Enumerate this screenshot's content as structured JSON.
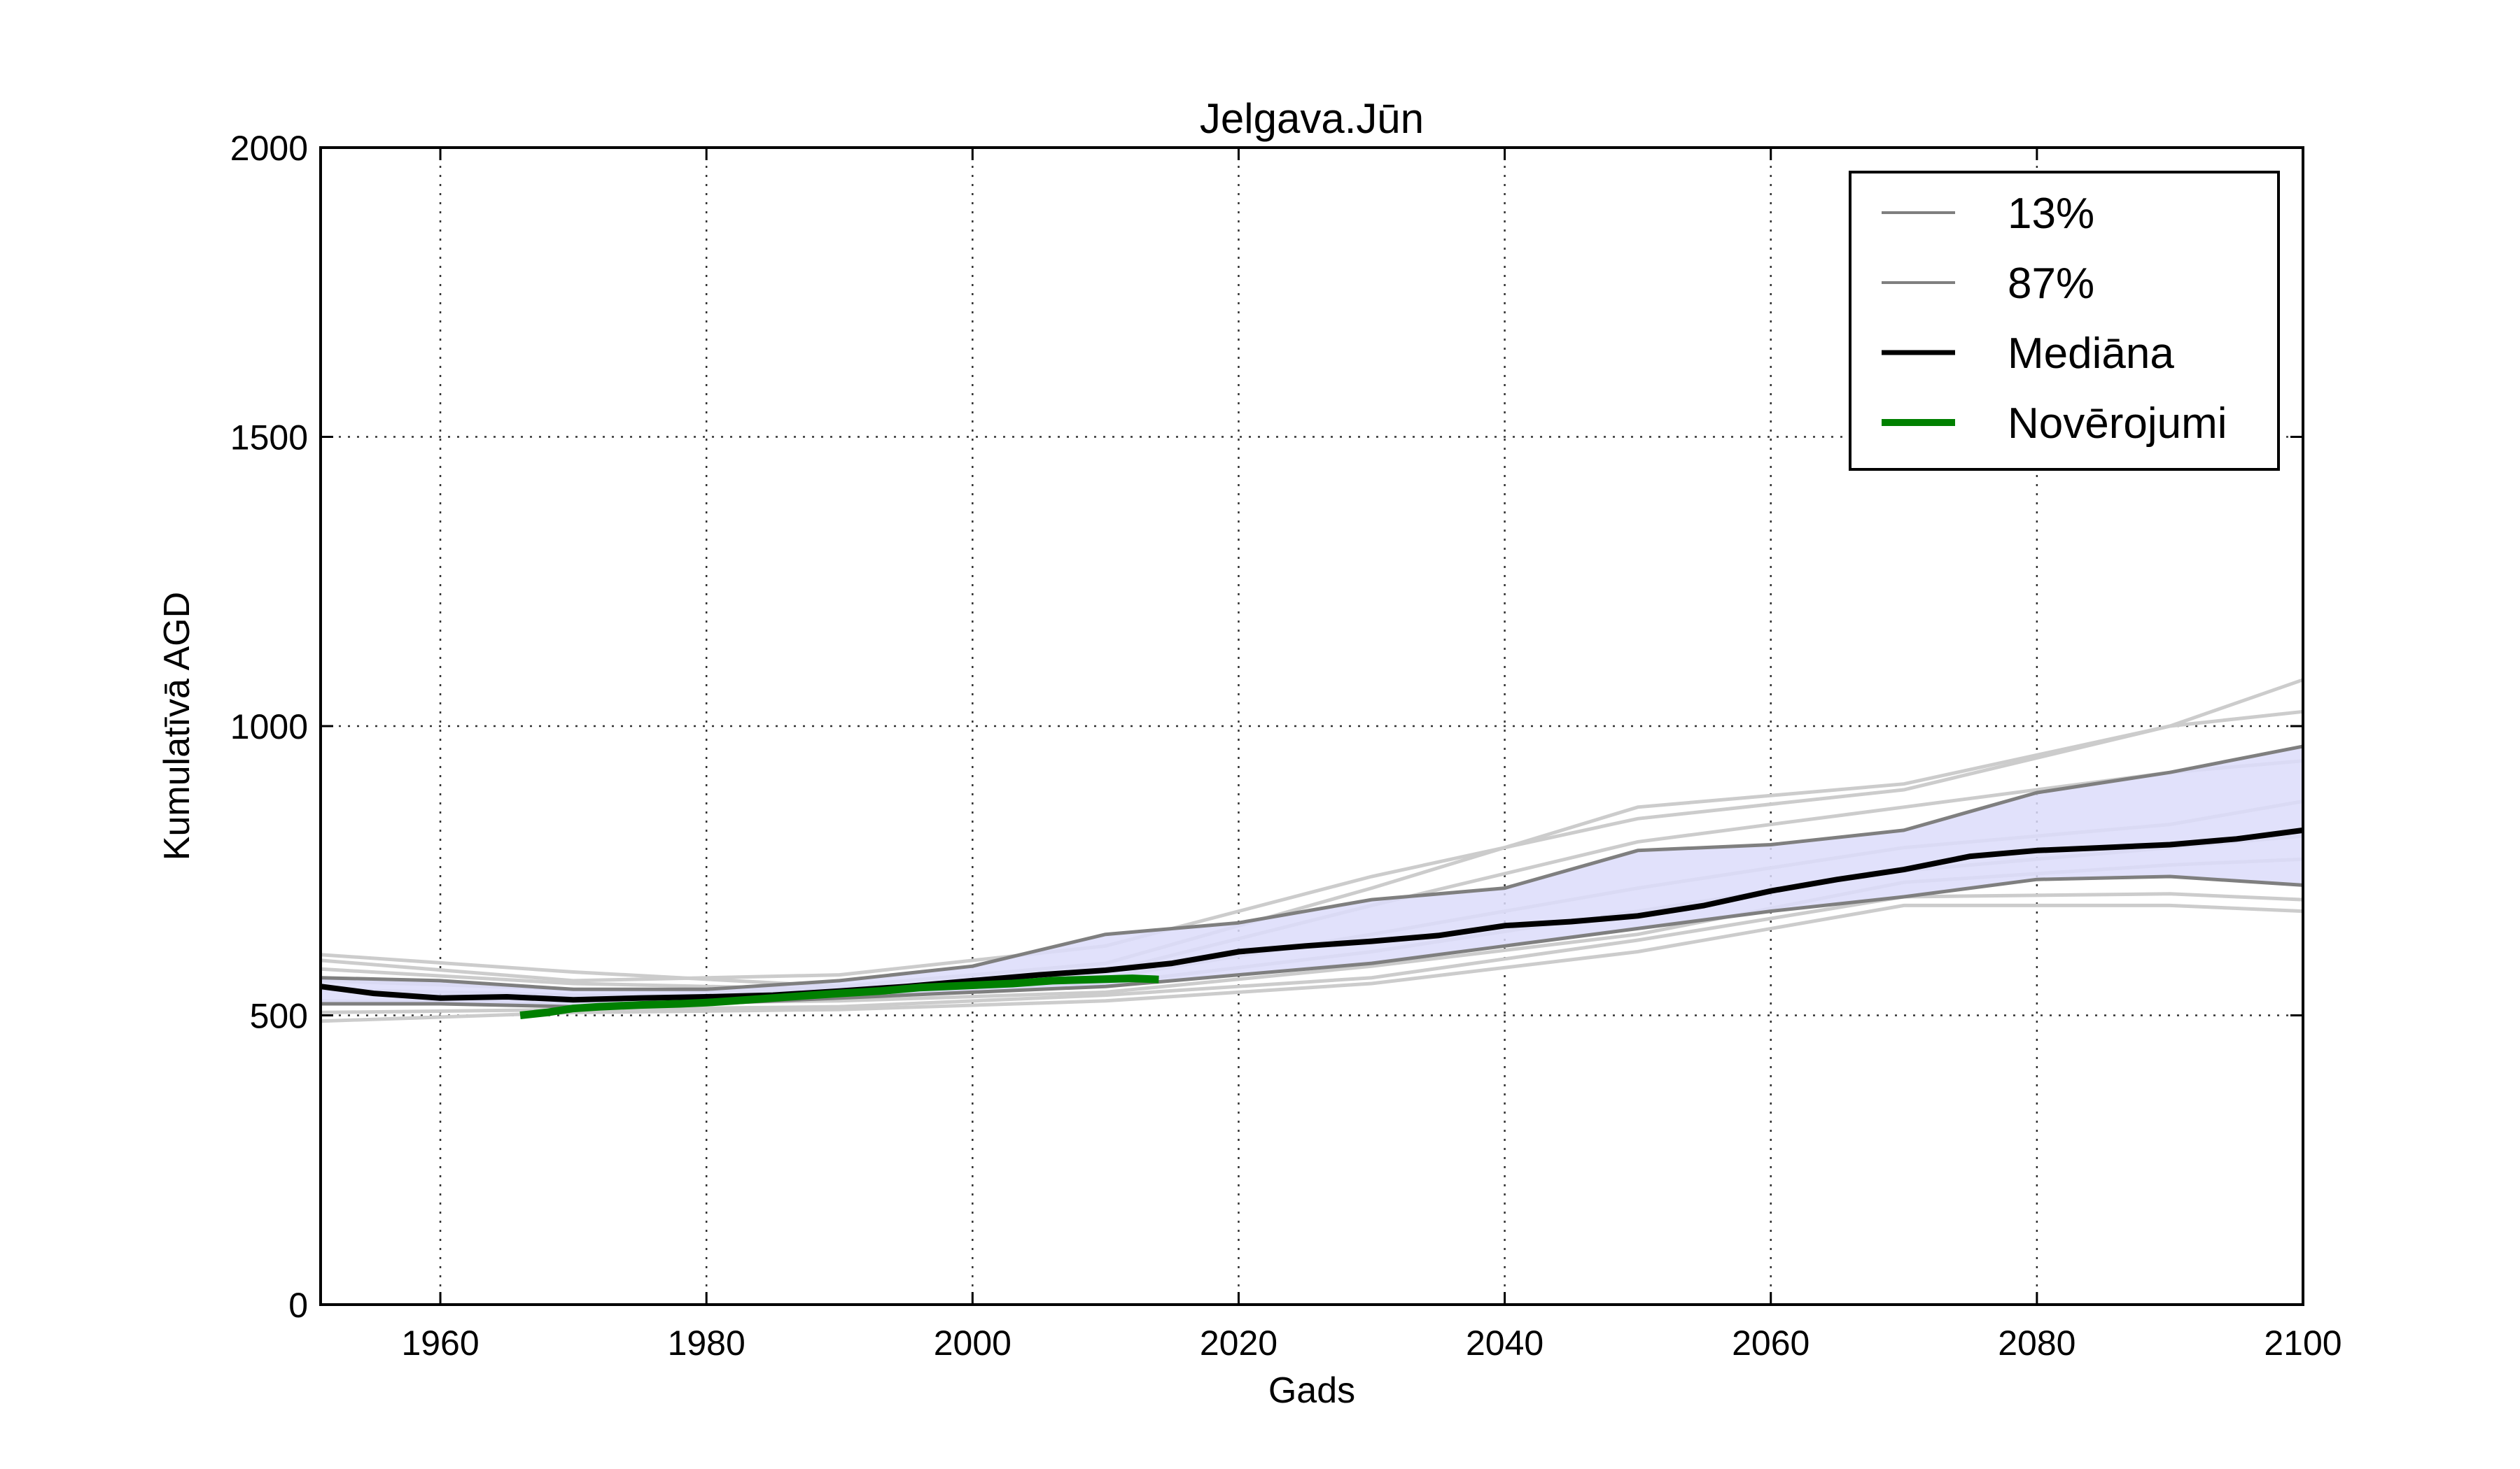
{
  "chart_data": {
    "type": "line",
    "title": "Jelgava.Jūn",
    "xlabel": "Gads",
    "ylabel": "Kumulatīvā AGD",
    "xlim": [
      1951,
      2100
    ],
    "ylim": [
      0,
      2000
    ],
    "xticks": [
      1960,
      1980,
      2000,
      2020,
      2040,
      2060,
      2080,
      2100
    ],
    "yticks": [
      0,
      500,
      1000,
      1500,
      2000
    ],
    "grid": true,
    "legend_position": "top-right",
    "band_color": "#dcdcfa",
    "legend": [
      {
        "label": "13%",
        "color": "#7f7f7f"
      },
      {
        "label": "87%",
        "color": "#7f7f7f"
      },
      {
        "label": "Mediāna",
        "color": "#000000"
      },
      {
        "label": "Novērojumi",
        "color": "#008000"
      }
    ],
    "series": [
      {
        "name": "13%",
        "color": "#7f7f7f",
        "role": "band-lower",
        "x": [
          1951,
          1960,
          1970,
          1980,
          1990,
          2000,
          2010,
          2020,
          2030,
          2040,
          2050,
          2060,
          2070,
          2080,
          2090,
          2100
        ],
        "y": [
          520,
          520,
          515,
          520,
          530,
          540,
          550,
          570,
          590,
          620,
          650,
          680,
          705,
          735,
          740,
          725
        ]
      },
      {
        "name": "87%",
        "color": "#7f7f7f",
        "role": "band-upper",
        "x": [
          1951,
          1960,
          1970,
          1980,
          1990,
          2000,
          2010,
          2020,
          2030,
          2040,
          2050,
          2060,
          2070,
          2080,
          2090,
          2100
        ],
        "y": [
          565,
          560,
          545,
          545,
          560,
          585,
          640,
          660,
          700,
          720,
          785,
          795,
          820,
          885,
          920,
          965
        ]
      },
      {
        "name": "Mediāna",
        "color": "#000000",
        "role": "median",
        "x": [
          1951,
          1955,
          1960,
          1965,
          1970,
          1975,
          1980,
          1985,
          1990,
          1995,
          2000,
          2005,
          2010,
          2015,
          2020,
          2025,
          2030,
          2035,
          2040,
          2045,
          2050,
          2055,
          2060,
          2065,
          2070,
          2075,
          2080,
          2085,
          2090,
          2095,
          2100
        ],
        "y": [
          550,
          538,
          530,
          532,
          527,
          530,
          532,
          535,
          542,
          550,
          560,
          570,
          578,
          590,
          610,
          620,
          628,
          638,
          655,
          662,
          672,
          690,
          715,
          735,
          752,
          775,
          785,
          790,
          795,
          805,
          820
        ]
      },
      {
        "name": "Novērojumi",
        "color": "#008000",
        "role": "observed",
        "x": [
          1966,
          1968,
          1970,
          1972,
          1975,
          1978,
          1980,
          1982,
          1985,
          1988,
          1990,
          1993,
          1996,
          2000,
          2003,
          2006,
          2009,
          2012,
          2014
        ],
        "y": [
          500,
          505,
          512,
          515,
          518,
          520,
          522,
          525,
          530,
          535,
          538,
          542,
          548,
          552,
          555,
          560,
          562,
          564,
          562
        ]
      }
    ],
    "ensemble_members": [
      {
        "x": [
          1951,
          1970,
          1990,
          2010,
          2030,
          2050,
          2070,
          2090,
          2100
        ],
        "y": [
          605,
          575,
          550,
          590,
          720,
          860,
          900,
          1000,
          1080
        ]
      },
      {
        "x": [
          1951,
          1970,
          1990,
          2010,
          2030,
          2050,
          2070,
          2090,
          2100
        ],
        "y": [
          595,
          560,
          570,
          620,
          740,
          840,
          890,
          1000,
          1025
        ]
      },
      {
        "x": [
          1951,
          1970,
          1990,
          2010,
          2030,
          2050,
          2070,
          2090,
          2100
        ],
        "y": [
          580,
          555,
          545,
          575,
          690,
          800,
          860,
          920,
          940
        ]
      },
      {
        "x": [
          1951,
          1970,
          1990,
          2010,
          2030,
          2050,
          2070,
          2090,
          2100
        ],
        "y": [
          560,
          545,
          540,
          565,
          640,
          720,
          790,
          830,
          870
        ]
      },
      {
        "x": [
          1951,
          1970,
          1990,
          2010,
          2030,
          2050,
          2070,
          2090,
          2100
        ],
        "y": [
          545,
          535,
          530,
          555,
          610,
          680,
          750,
          790,
          810
        ]
      },
      {
        "x": [
          1951,
          1970,
          1990,
          2010,
          2030,
          2050,
          2070,
          2090,
          2100
        ],
        "y": [
          525,
          520,
          525,
          540,
          585,
          640,
          730,
          760,
          770
        ]
      },
      {
        "x": [
          1951,
          1970,
          1990,
          2010,
          2030,
          2050,
          2070,
          2090,
          2100
        ],
        "y": [
          505,
          510,
          515,
          535,
          565,
          630,
          705,
          710,
          700
        ]
      },
      {
        "x": [
          1951,
          1970,
          1990,
          2010,
          2030,
          2050,
          2070,
          2090,
          2100
        ],
        "y": [
          490,
          505,
          510,
          525,
          555,
          610,
          690,
          690,
          680
        ]
      }
    ]
  }
}
